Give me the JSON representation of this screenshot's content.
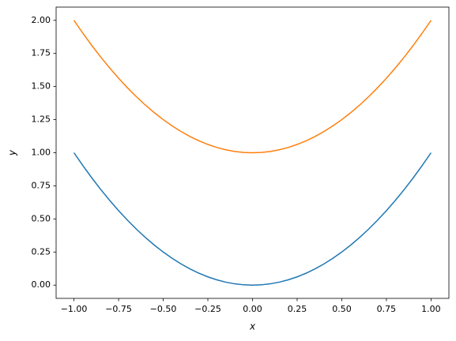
{
  "chart_data": {
    "type": "line",
    "x_label": "x",
    "y_label": "y",
    "x": [
      -1,
      -0.95,
      -0.9,
      -0.85,
      -0.8,
      -0.75,
      -0.7,
      -0.65,
      -0.6,
      -0.55,
      -0.5,
      -0.45,
      -0.4,
      -0.35,
      -0.3,
      -0.25,
      -0.2,
      -0.15,
      -0.1,
      -0.05,
      0,
      0.05,
      0.1,
      0.15,
      0.2,
      0.25,
      0.3,
      0.35,
      0.4,
      0.45,
      0.5,
      0.55,
      0.6,
      0.65,
      0.7,
      0.75,
      0.8,
      0.85,
      0.9,
      0.95,
      1
    ],
    "series": [
      {
        "color": "#1f77b4",
        "values": [
          1,
          0.9025,
          0.81,
          0.7225,
          0.64,
          0.5625,
          0.49,
          0.4225,
          0.36,
          0.3025,
          0.25,
          0.2025,
          0.16,
          0.1225,
          0.09,
          0.0625,
          0.04,
          0.0225,
          0.01,
          0.0025,
          0,
          0.0025,
          0.01,
          0.0225,
          0.04,
          0.0625,
          0.09,
          0.1225,
          0.16,
          0.2025,
          0.25,
          0.3025,
          0.36,
          0.4225,
          0.49,
          0.5625,
          0.64,
          0.7225,
          0.81,
          0.9025,
          1
        ]
      },
      {
        "color": "#ff7f0e",
        "values": [
          2,
          1.9025,
          1.81,
          1.7225,
          1.64,
          1.5625,
          1.49,
          1.4225,
          1.36,
          1.3025,
          1.25,
          1.2025,
          1.16,
          1.1225,
          1.09,
          1.0625,
          1.04,
          1.0225,
          1.01,
          1.0025,
          1,
          1.0025,
          1.01,
          1.0225,
          1.04,
          1.0625,
          1.09,
          1.1225,
          1.16,
          1.2025,
          1.25,
          1.3025,
          1.36,
          1.4225,
          1.49,
          1.5625,
          1.64,
          1.7225,
          1.81,
          1.9025,
          2
        ]
      }
    ],
    "xlim": [
      -1.1,
      1.1
    ],
    "ylim": [
      -0.1,
      2.1
    ],
    "xticks": [
      {
        "value": -1,
        "label": "−1.00"
      },
      {
        "value": -0.75,
        "label": "−0.75"
      },
      {
        "value": -0.5,
        "label": "−0.50"
      },
      {
        "value": -0.25,
        "label": "−0.25"
      },
      {
        "value": 0,
        "label": "0.00"
      },
      {
        "value": 0.25,
        "label": "0.25"
      },
      {
        "value": 0.5,
        "label": "0.50"
      },
      {
        "value": 0.75,
        "label": "0.75"
      },
      {
        "value": 1,
        "label": "1.00"
      }
    ],
    "yticks": [
      {
        "value": 0,
        "label": "0.00"
      },
      {
        "value": 0.25,
        "label": "0.25"
      },
      {
        "value": 0.5,
        "label": "0.50"
      },
      {
        "value": 0.75,
        "label": "0.75"
      },
      {
        "value": 1,
        "label": "1.00"
      },
      {
        "value": 1.25,
        "label": "1.25"
      },
      {
        "value": 1.5,
        "label": "1.50"
      },
      {
        "value": 1.75,
        "label": "1.75"
      },
      {
        "value": 2,
        "label": "2.00"
      }
    ],
    "grid": false
  }
}
